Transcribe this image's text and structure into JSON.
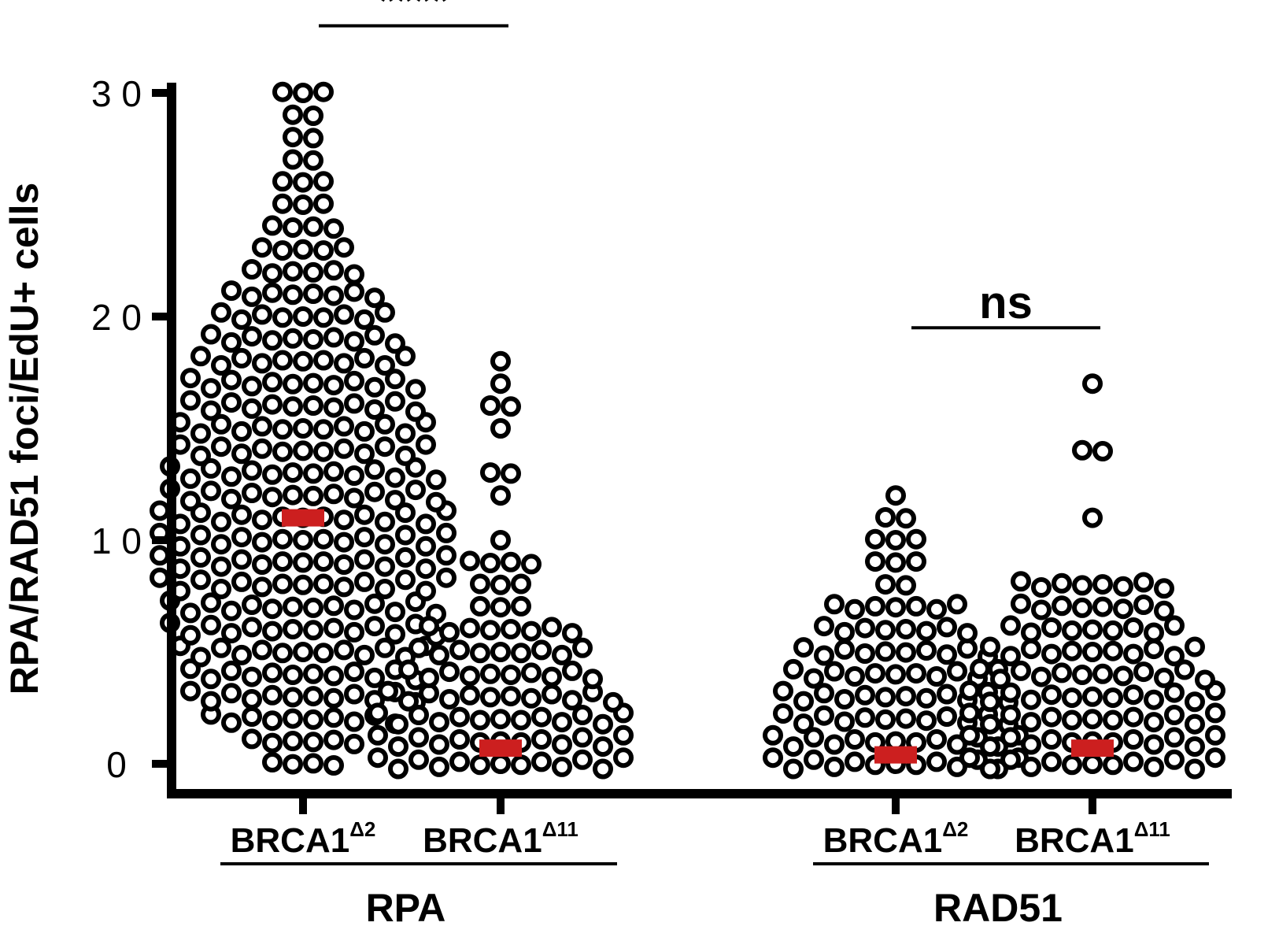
{
  "chart_data": {
    "type": "scatter",
    "ylabel": "RPA/RAD51 foci/EdU+ cells",
    "ylim": [
      0,
      30
    ],
    "yticks": [
      {
        "value": 0,
        "label": "0"
      },
      {
        "value": 10,
        "label": "1 0"
      },
      {
        "value": 20,
        "label": "2 0"
      },
      {
        "value": 30,
        "label": "3 0"
      }
    ],
    "colors": {
      "points": "#000000",
      "median": "#cc1f1f",
      "axis": "#000000"
    },
    "groups": [
      {
        "label": "RPA",
        "categories": [
          0,
          1
        ]
      },
      {
        "label": "RAD51",
        "categories": [
          2,
          3
        ]
      }
    ],
    "categories": [
      {
        "name": "BRCA1",
        "superscript": "Δ2",
        "median": 11,
        "distribution": [
          [
            0,
            4
          ],
          [
            1,
            6
          ],
          [
            2,
            10
          ],
          [
            3,
            12
          ],
          [
            4,
            12
          ],
          [
            5,
            13
          ],
          [
            6,
            14
          ],
          [
            7,
            14
          ],
          [
            8,
            15
          ],
          [
            9,
            15
          ],
          [
            10,
            15
          ],
          [
            11,
            15
          ],
          [
            12,
            14
          ],
          [
            13,
            14
          ],
          [
            14,
            13
          ],
          [
            15,
            13
          ],
          [
            16,
            12
          ],
          [
            17,
            12
          ],
          [
            18,
            11
          ],
          [
            19,
            10
          ],
          [
            20,
            9
          ],
          [
            21,
            8
          ],
          [
            22,
            6
          ],
          [
            23,
            5
          ],
          [
            24,
            4
          ],
          [
            25,
            3
          ],
          [
            26,
            3
          ],
          [
            27,
            2
          ],
          [
            28,
            2
          ],
          [
            29,
            2
          ],
          [
            30,
            3
          ]
        ]
      },
      {
        "name": "BRCA1",
        "superscript": "Δ11",
        "median": 0.7,
        "distribution": [
          [
            0,
            13
          ],
          [
            1,
            13
          ],
          [
            2,
            13
          ],
          [
            3,
            12
          ],
          [
            4,
            10
          ],
          [
            5,
            9
          ],
          [
            6,
            8
          ],
          [
            7,
            3
          ],
          [
            8,
            3
          ],
          [
            9,
            4
          ],
          [
            10,
            1
          ],
          [
            12,
            1
          ],
          [
            13,
            2
          ],
          [
            15,
            1
          ],
          [
            16,
            2
          ],
          [
            17,
            1
          ],
          [
            18,
            1
          ]
        ]
      },
      {
        "name": "BRCA1",
        "superscript": "Δ2",
        "median": 0.4,
        "distribution": [
          [
            0,
            13
          ],
          [
            1,
            13
          ],
          [
            2,
            12
          ],
          [
            3,
            12
          ],
          [
            4,
            11
          ],
          [
            5,
            10
          ],
          [
            6,
            8
          ],
          [
            7,
            7
          ],
          [
            8,
            2
          ],
          [
            9,
            3
          ],
          [
            10,
            3
          ],
          [
            11,
            2
          ],
          [
            12,
            1
          ]
        ]
      },
      {
        "name": "BRCA1",
        "superscript": "Δ11",
        "median": 0.7,
        "distribution": [
          [
            0,
            13
          ],
          [
            1,
            13
          ],
          [
            2,
            13
          ],
          [
            3,
            13
          ],
          [
            4,
            12
          ],
          [
            5,
            11
          ],
          [
            6,
            9
          ],
          [
            7,
            8
          ],
          [
            8,
            8
          ],
          [
            11,
            1
          ],
          [
            14,
            2
          ],
          [
            17,
            1
          ]
        ]
      }
    ],
    "comparisons": [
      {
        "between": [
          0,
          1
        ],
        "label": "****",
        "y": 33
      },
      {
        "between": [
          2,
          3
        ],
        "label": "ns",
        "y": 19.5
      }
    ]
  }
}
